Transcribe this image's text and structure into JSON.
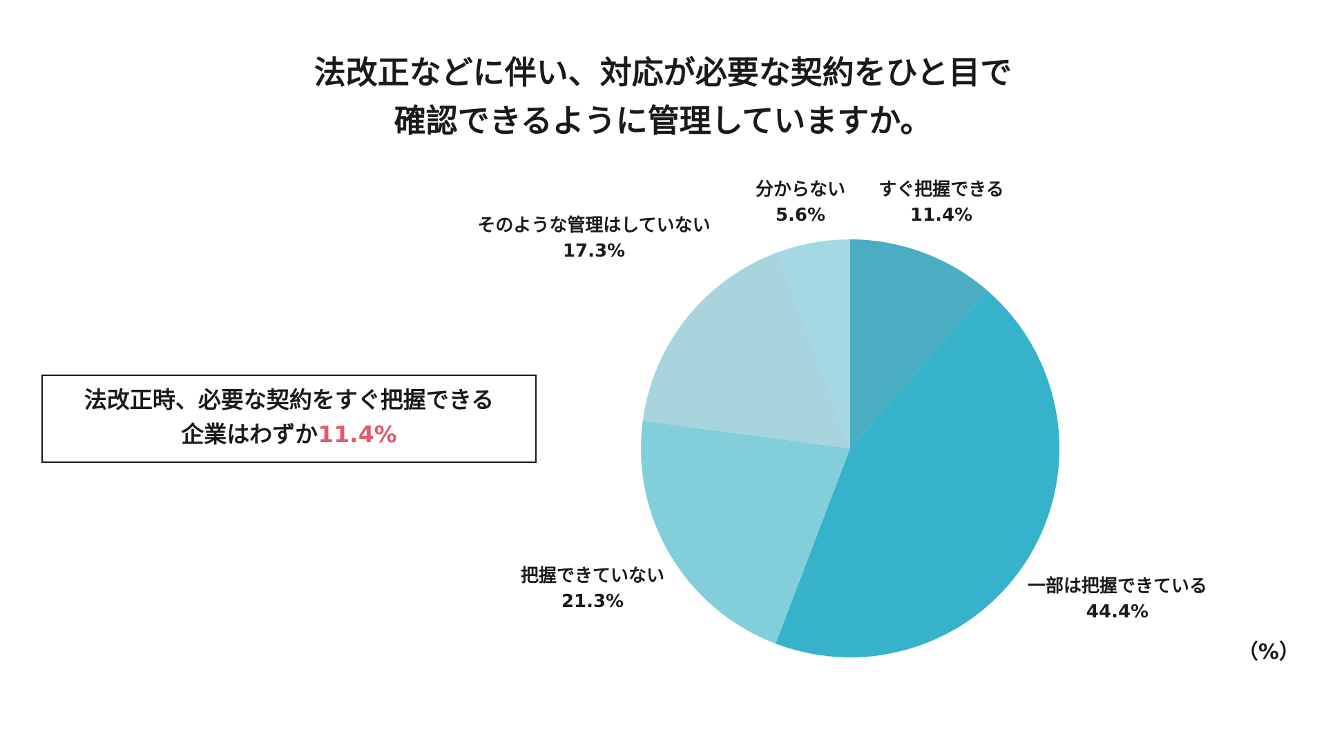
{
  "title": {
    "line1": "法改正などに伴い、対応が必要な契約をひと目で",
    "line2": "確認できるように管理していますか。"
  },
  "callout": {
    "line1": "法改正時、必要な契約をすぐ把握できる",
    "line2_prefix": "企業はわずか",
    "line2_highlight": "11.4%",
    "highlight_color": "#e05c6a"
  },
  "unit_label": "（%）",
  "chart_data": {
    "type": "pie",
    "unit": "%",
    "start": "12 o'clock",
    "direction": "clockwise",
    "slices": [
      {
        "label": "すぐ把握できる",
        "value": 11.4,
        "value_label": "11.4%",
        "color": "#4aadc1"
      },
      {
        "label": "一部は把握できている",
        "value": 44.4,
        "value_label": "44.4%",
        "color": "#36b3ca"
      },
      {
        "label": "把握できていない",
        "value": 21.3,
        "value_label": "21.3%",
        "color": "#82ceda"
      },
      {
        "label": "そのような管理はしていない",
        "value": 17.3,
        "value_label": "17.3%",
        "color": "#a8d4de"
      },
      {
        "label": "分からない",
        "value": 5.6,
        "value_label": "5.6%",
        "color": "#a4d9e4"
      }
    ]
  }
}
